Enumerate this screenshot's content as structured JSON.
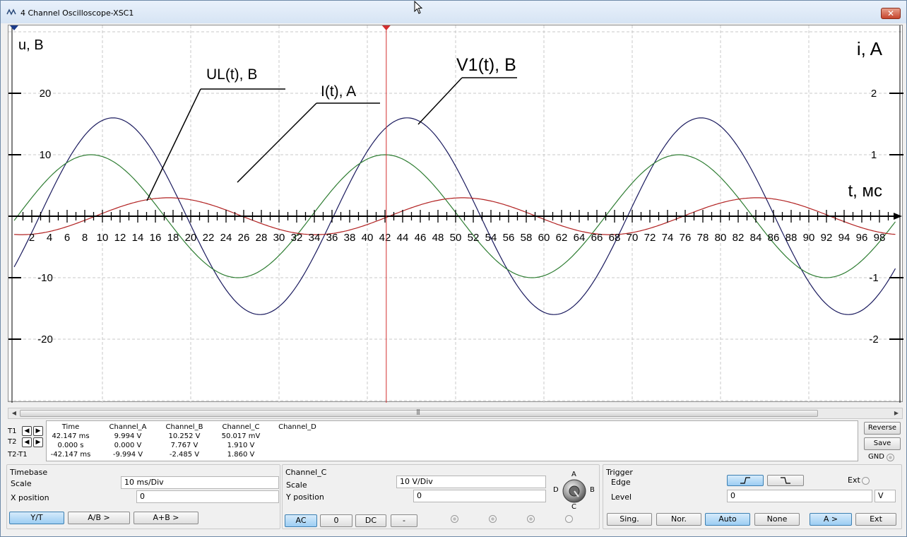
{
  "window": {
    "title": "4 Channel Oscilloscope-XSC1",
    "close_label": "✕"
  },
  "plot": {
    "y_left_label": "u, B",
    "y_right_label": "i, A",
    "t_label": "t, мс",
    "left_ticks": [
      "20",
      "10",
      "0",
      "-10",
      "-20"
    ],
    "right_ticks": [
      "2",
      "1",
      "-1",
      "-2"
    ],
    "t_ticks": [
      "2",
      "4",
      "6",
      "8",
      "10",
      "12",
      "14",
      "16",
      "18",
      "20",
      "22",
      "24",
      "26",
      "28",
      "30",
      "32",
      "34",
      "36",
      "38",
      "40",
      "42",
      "44",
      "46",
      "48",
      "50",
      "52",
      "54",
      "56",
      "58",
      "60",
      "62",
      "64",
      "66",
      "68",
      "70",
      "72",
      "74",
      "76",
      "78",
      "80",
      "82",
      "84",
      "86",
      "88",
      "90",
      "92",
      "94",
      "96",
      "98"
    ],
    "annotations": {
      "ul": "UL(t), B",
      "i": "I(t), A",
      "v1": "V1(t),  B"
    },
    "colors": {
      "v1": "#1a1a5e",
      "i": "#2e7d32",
      "ul": "#b22222",
      "cursor": "#d32f2f",
      "grid": "#c8c8c8"
    }
  },
  "chart_data": {
    "type": "line",
    "x_unit": "t, мс",
    "x_range": [
      0,
      100
    ],
    "y_left_range": [
      -30,
      30
    ],
    "y_right_range": [
      -3,
      3
    ],
    "series": [
      {
        "name": "V1(t),  B",
        "axis": "left",
        "amplitude": 16,
        "period_ms": 33.3,
        "peak_ms": 44.5
      },
      {
        "name": "I(t), A",
        "axis": "right",
        "amplitude": 1.0,
        "period_ms": 33.3,
        "peak_ms": 42
      },
      {
        "name": "UL(t), B",
        "axis": "left",
        "amplitude": 3,
        "period_ms": 33.3,
        "peak_ms": 17.5
      }
    ],
    "cursor_t_ms": 42.147
  },
  "measurements": {
    "row_labels": [
      "T1",
      "T2",
      "T2-T1"
    ],
    "headers": [
      "Time",
      "Channel_A",
      "Channel_B",
      "Channel_C",
      "Channel_D"
    ],
    "rows": [
      [
        "42.147 ms",
        "9.994 V",
        "10.252 V",
        "50.017 mV",
        ""
      ],
      [
        "0.000 s",
        "0.000 V",
        "7.767 V",
        "1.910 V",
        ""
      ],
      [
        "-42.147 ms",
        "-9.994 V",
        "-2.485 V",
        "1.860 V",
        ""
      ]
    ],
    "reverse_label": "Reverse",
    "save_label": "Save",
    "gnd_label": "GND"
  },
  "timebase": {
    "title": "Timebase",
    "scale_label": "Scale",
    "scale_value": "10 ms/Div",
    "xpos_label": "X position",
    "xpos_value": "0",
    "buttons": [
      "Y/T",
      "A/B >",
      "A+B >"
    ]
  },
  "channel": {
    "title": "Channel_C",
    "scale_label": "Scale",
    "scale_value": "10  V/Div",
    "ypos_label": "Y position",
    "ypos_value": "0",
    "buttons": [
      "AC",
      "0",
      "DC",
      "-"
    ],
    "knob_labels": {
      "a": "A",
      "b": "B",
      "c": "C",
      "d": "D"
    }
  },
  "trigger": {
    "title": "Trigger",
    "edge_label": "Edge",
    "ext_label": "Ext",
    "level_label": "Level",
    "level_value": "0",
    "level_unit": "V",
    "buttons": [
      "Sing.",
      "Nor.",
      "Auto",
      "None",
      "A >",
      "Ext"
    ]
  }
}
